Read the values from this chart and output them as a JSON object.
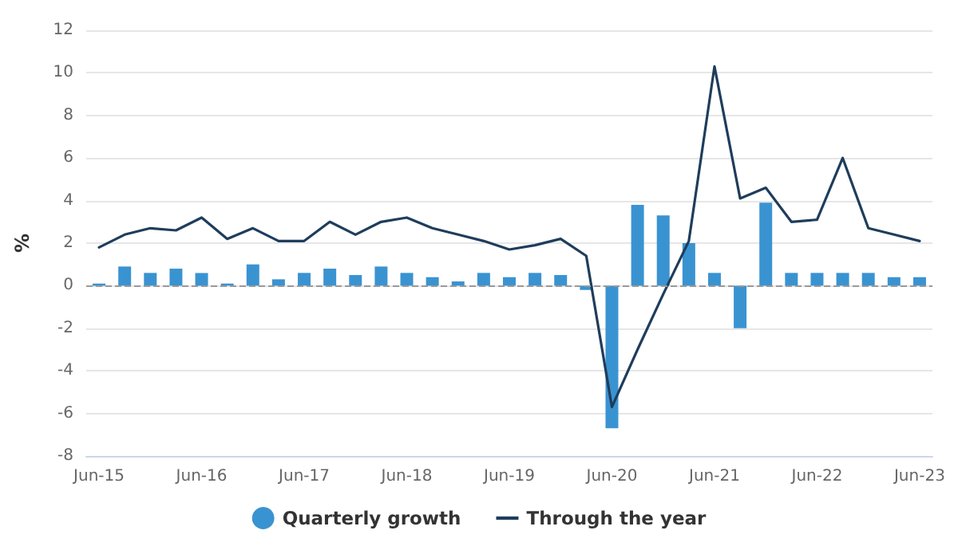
{
  "chart_data": {
    "type": "bar",
    "ylabel": "%",
    "categories": [
      "Jun-15",
      null,
      null,
      null,
      "Jun-16",
      null,
      null,
      null,
      "Jun-17",
      null,
      null,
      null,
      "Jun-18",
      null,
      null,
      null,
      "Jun-19",
      null,
      null,
      null,
      "Jun-20",
      null,
      null,
      null,
      "Jun-21",
      null,
      null,
      null,
      "Jun-22",
      null,
      null,
      null,
      "Jun-23"
    ],
    "series": [
      {
        "name": "Quarterly growth",
        "color": "#3a93d1",
        "values": [
          0.1,
          0.9,
          0.6,
          0.8,
          0.6,
          0.1,
          1.0,
          0.3,
          0.6,
          0.8,
          0.5,
          0.9,
          0.6,
          0.4,
          0.2,
          0.6,
          0.4,
          0.6,
          0.5,
          -0.2,
          -6.7,
          3.8,
          3.3,
          2.0,
          0.6,
          -2.0,
          3.9,
          0.6,
          0.6,
          0.6,
          0.6,
          0.4,
          0.4
        ]
      },
      {
        "name": "Through the year",
        "type": "line",
        "color": "#1f3d5c",
        "values": [
          1.8,
          2.4,
          2.7,
          2.6,
          3.2,
          2.2,
          2.7,
          2.1,
          2.1,
          3.0,
          2.4,
          3.0,
          3.2,
          2.7,
          2.4,
          2.1,
          1.7,
          1.9,
          2.2,
          1.4,
          -5.7,
          -3.0,
          -0.4,
          2.1,
          10.3,
          4.1,
          4.6,
          3.0,
          3.1,
          6.0,
          2.7,
          2.4,
          2.1
        ]
      }
    ],
    "ylim": [
      -8,
      12
    ],
    "yticks": [
      -8,
      -6,
      -4,
      -2,
      0,
      2,
      4,
      6,
      8,
      10,
      12
    ],
    "grid": "y",
    "legend": "bottom",
    "marker": "none",
    "ref_lines": [
      {
        "axis": "y",
        "value": 0,
        "color": "#999999",
        "line_style": "dashed"
      }
    ]
  }
}
